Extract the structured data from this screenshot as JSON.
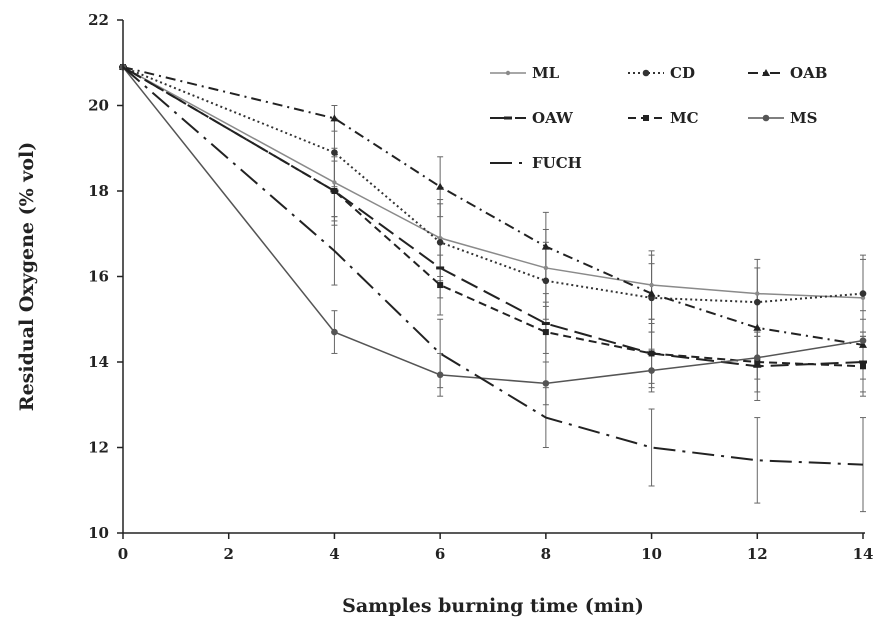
{
  "chart_data": {
    "type": "line",
    "title": "",
    "xlabel": "Samples burning time (min)",
    "ylabel": "Residual Oxygene (% vol)",
    "xlim": [
      0,
      14
    ],
    "ylim": [
      10,
      22
    ],
    "xticks": [
      "0",
      "2",
      "4",
      "6",
      "8",
      "10",
      "12",
      "14"
    ],
    "yticks": [
      "10",
      "12",
      "14",
      "16",
      "18",
      "20",
      "22"
    ],
    "grid": false,
    "legend_position": "top-right",
    "x": [
      0,
      4,
      6,
      8,
      10,
      12,
      14
    ],
    "series": [
      {
        "name": "ML",
        "color": "#8a8a8a",
        "dash": "solid",
        "marker": "dot",
        "values": [
          20.9,
          18.2,
          16.9,
          16.2,
          15.8,
          15.6,
          15.5
        ],
        "error": [
          0,
          0.8,
          0.9,
          0.9,
          0.8,
          0.8,
          0.9
        ]
      },
      {
        "name": "CD",
        "color": "#333333",
        "dash": "dot",
        "marker": "circle",
        "values": [
          20.9,
          18.9,
          16.8,
          15.9,
          15.5,
          15.4,
          15.6
        ],
        "error": [
          0,
          0.8,
          0.9,
          0.9,
          0.8,
          0.8,
          0.9
        ]
      },
      {
        "name": "OAB",
        "color": "#222222",
        "dash": "dashdot",
        "marker": "triangle",
        "values": [
          20.9,
          19.7,
          18.1,
          16.7,
          15.6,
          14.8,
          14.4
        ],
        "error": [
          0,
          0.3,
          0.7,
          0.8,
          0.9,
          0.8,
          0.8
        ]
      },
      {
        "name": "OAW",
        "color": "#222222",
        "dash": "longdash",
        "marker": "dash",
        "values": [
          20.9,
          18.0,
          16.2,
          14.9,
          14.2,
          13.9,
          14.0
        ],
        "error": [
          0,
          0.8,
          0.7,
          0.7,
          0.8,
          0.8,
          0.7
        ]
      },
      {
        "name": "MC",
        "color": "#222222",
        "dash": "dash",
        "marker": "square",
        "values": [
          20.9,
          18.0,
          15.8,
          14.7,
          14.2,
          14.0,
          13.9
        ],
        "error": [
          0,
          0.7,
          0.7,
          0.7,
          0.7,
          0.7,
          0.7
        ]
      },
      {
        "name": "MS",
        "color": "#555555",
        "dash": "solid",
        "marker": "circle",
        "values": [
          20.9,
          14.7,
          13.7,
          13.5,
          13.8,
          14.1,
          14.5
        ],
        "error": [
          0,
          0.5,
          0.5,
          0.5,
          0.5,
          0.5,
          0.5
        ]
      },
      {
        "name": "FUCH",
        "color": "#222222",
        "dash": "longdashdot",
        "marker": "none",
        "values": [
          20.9,
          16.6,
          14.2,
          12.7,
          12.0,
          11.7,
          11.6
        ],
        "error": [
          0,
          0.8,
          0.8,
          0.7,
          0.9,
          1.0,
          1.1
        ]
      }
    ]
  }
}
